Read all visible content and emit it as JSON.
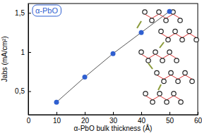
{
  "chart_data": {
    "type": "line",
    "legend_label": "α-PbO",
    "x_label": "α-PbO bulk thickness (Å)",
    "y_label": "Jabs (mA/cm²)",
    "x": [
      10,
      20,
      30,
      40,
      50
    ],
    "series": [
      {
        "name": "α-PbO",
        "color": "#2f5fd0",
        "values": [
          0.36,
          0.68,
          0.98,
          1.25,
          1.52
        ],
        "marker": "circle",
        "line_style": "solid"
      }
    ],
    "xlim": [
      0,
      60
    ],
    "xticks": [
      0,
      10,
      20,
      30,
      40,
      50,
      60
    ],
    "ylim": [
      0.2,
      1.62
    ],
    "yticks": [
      {
        "value": 0.5,
        "label": "0,5"
      },
      1,
      {
        "value": 1.5,
        "label": "1,5"
      }
    ],
    "grid": false
  }
}
